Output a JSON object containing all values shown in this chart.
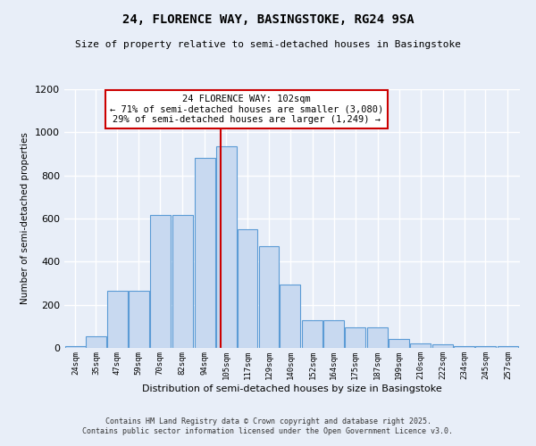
{
  "title1": "24, FLORENCE WAY, BASINGSTOKE, RG24 9SA",
  "title2": "Size of property relative to semi-detached houses in Basingstoke",
  "xlabel": "Distribution of semi-detached houses by size in Basingstoke",
  "ylabel": "Number of semi-detached properties",
  "bin_labels": [
    "24sqm",
    "35sqm",
    "47sqm",
    "59sqm",
    "70sqm",
    "82sqm",
    "94sqm",
    "105sqm",
    "117sqm",
    "129sqm",
    "140sqm",
    "152sqm",
    "164sqm",
    "175sqm",
    "187sqm",
    "199sqm",
    "210sqm",
    "222sqm",
    "234sqm",
    "245sqm",
    "257sqm"
  ],
  "bin_left": [
    18.5,
    29.5,
    41,
    52.5,
    64,
    76,
    88,
    99.5,
    111,
    122.5,
    134,
    146,
    157.5,
    169,
    181,
    192.5,
    204,
    216,
    227.5,
    239,
    251
  ],
  "bin_width": 11,
  "bar_heights": [
    10,
    55,
    265,
    265,
    615,
    615,
    880,
    935,
    550,
    470,
    295,
    130,
    130,
    95,
    95,
    40,
    20,
    15,
    10,
    10,
    8
  ],
  "bar_color": "#c8d9f0",
  "bar_edge_color": "#5b9bd5",
  "red_line_x": 102,
  "annotation_title": "24 FLORENCE WAY: 102sqm",
  "annotation_line1": "← 71% of semi-detached houses are smaller (3,080)",
  "annotation_line2": "29% of semi-detached houses are larger (1,249) →",
  "annotation_box_color": "#ffffff",
  "annotation_box_edge": "#cc0000",
  "ylim": [
    0,
    1200
  ],
  "xlim": [
    18,
    263
  ],
  "background_color": "#e8eef8",
  "grid_color": "#ffffff",
  "footnote1": "Contains HM Land Registry data © Crown copyright and database right 2025.",
  "footnote2": "Contains public sector information licensed under the Open Government Licence v3.0."
}
